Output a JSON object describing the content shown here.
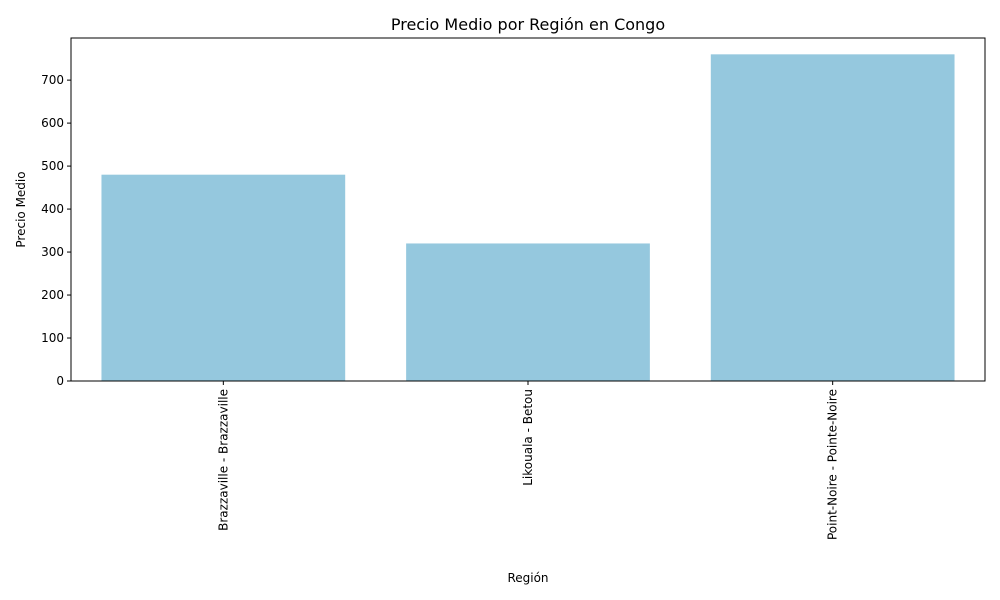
{
  "chart_data": {
    "type": "bar",
    "title": "Precio Medio por Región en Congo",
    "xlabel": "Región",
    "ylabel": "Precio Medio",
    "categories": [
      "Brazzaville - Brazzaville",
      "Likouala - Betou",
      "Point-Noire - Pointe-Noire"
    ],
    "values": [
      480,
      320,
      760
    ],
    "ylim": [
      0,
      798
    ],
    "yticks": [
      0,
      100,
      200,
      300,
      400,
      500,
      600,
      700
    ],
    "ytick_labels": [
      "0",
      "100",
      "200",
      "300",
      "400",
      "500",
      "600",
      "700"
    ],
    "bar_color": "#95c8de",
    "grid": false,
    "xtick_rotation": "vertical"
  }
}
